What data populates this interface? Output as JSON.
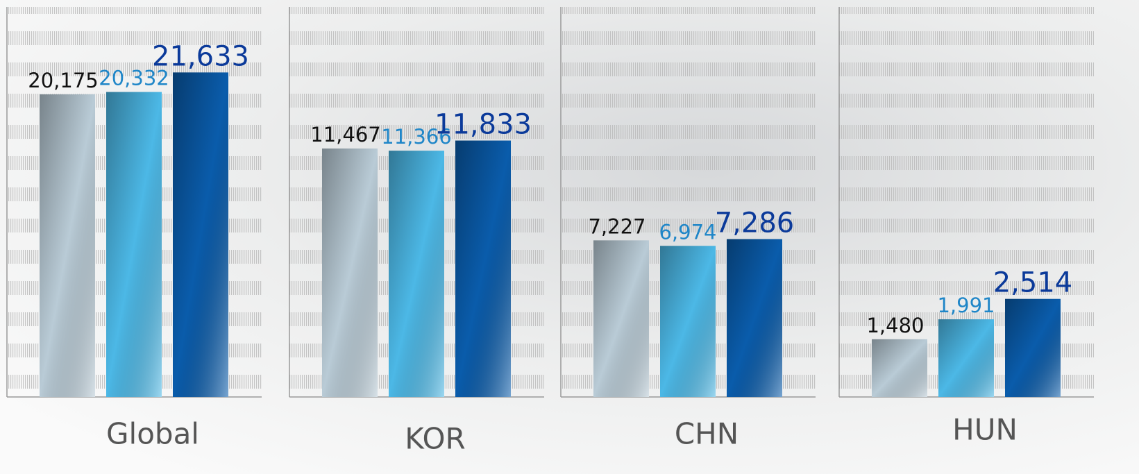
{
  "chart_data": [
    {
      "type": "bar",
      "title": "Global",
      "categories": [
        null,
        null,
        null
      ],
      "values": [
        20175,
        20332,
        21633
      ],
      "value_labels": [
        "20,175",
        "20,332",
        "21,633"
      ],
      "colors": [
        "#b9cbd6",
        "#4cb8e6",
        "#0a5cab"
      ],
      "ylim": [
        0,
        26000
      ]
    },
    {
      "type": "bar",
      "title": "KOR",
      "categories": [
        null,
        null,
        null
      ],
      "values": [
        11467,
        11366,
        11833
      ],
      "value_labels": [
        "11,467",
        "11,366",
        "11,833"
      ],
      "colors": [
        "#b9cbd6",
        "#4cb8e6",
        "#0a5cab"
      ],
      "ylim": [
        0,
        18000
      ]
    },
    {
      "type": "bar",
      "title": "CHN",
      "categories": [
        null,
        null,
        null
      ],
      "values": [
        7227,
        6974,
        7286
      ],
      "value_labels": [
        "7,227",
        "6,974",
        "7,286"
      ],
      "colors": [
        "#b9cbd6",
        "#4cb8e6",
        "#0a5cab"
      ],
      "ylim": [
        0,
        18000
      ]
    },
    {
      "type": "bar",
      "title": "HUN",
      "categories": [
        null,
        null,
        null
      ],
      "values": [
        1480,
        1991,
        2514
      ],
      "value_labels": [
        "1,480",
        "1,991",
        "2,514"
      ],
      "colors": [
        "#b9cbd6",
        "#4cb8e6",
        "#0a5cab"
      ],
      "ylim": [
        0,
        10000
      ]
    }
  ]
}
